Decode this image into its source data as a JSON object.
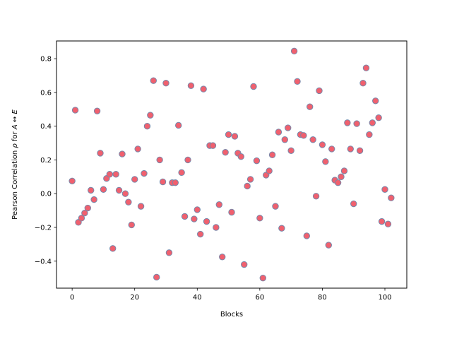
{
  "chart_data": {
    "type": "scatter",
    "title": "",
    "xlabel": "Blocks",
    "ylabel": "Pearson Correlation ρ for A ↔ E",
    "ylabel_parts": {
      "prefix": "Pearson Correlation ",
      "rho": "ρ",
      "middle": " for ",
      "a": "A",
      "arrow": " ↔ ",
      "e": "E"
    },
    "xlim": [
      -5,
      107
    ],
    "ylim": [
      -0.56,
      0.905
    ],
    "xticks": [
      0,
      20,
      40,
      60,
      80,
      100
    ],
    "yticks": [
      -0.4,
      -0.2,
      0.0,
      0.2,
      0.4,
      0.6,
      0.8
    ],
    "xtick_labels": [
      "0",
      "20",
      "40",
      "60",
      "80",
      "100"
    ],
    "ytick_labels": [
      "−0.4",
      "−0.2",
      "0.0",
      "0.2",
      "0.4",
      "0.6",
      "0.8"
    ],
    "grid": false,
    "legend": "none",
    "marker_fill": "#f0606e",
    "marker_edge": "#7788aa",
    "x": [
      0,
      1,
      2,
      3,
      4,
      5,
      6,
      7,
      8,
      9,
      10,
      11,
      12,
      13,
      14,
      15,
      16,
      17,
      18,
      19,
      20,
      21,
      22,
      23,
      24,
      25,
      26,
      27,
      28,
      29,
      30,
      31,
      32,
      33,
      34,
      35,
      36,
      37,
      38,
      39,
      40,
      41,
      42,
      43,
      44,
      45,
      46,
      47,
      48,
      49,
      50,
      51,
      52,
      53,
      54,
      55,
      56,
      57,
      58,
      59,
      60,
      61,
      62,
      63,
      64,
      65,
      66,
      67,
      68,
      69,
      70,
      71,
      72,
      73,
      74,
      75,
      76,
      77,
      78,
      79,
      80,
      81,
      82,
      83,
      84,
      85,
      86,
      87,
      88,
      89,
      90,
      91,
      92,
      93,
      94,
      95,
      96,
      97,
      98,
      99,
      100,
      101,
      102
    ],
    "y": [
      0.075,
      0.495,
      -0.17,
      -0.145,
      -0.115,
      -0.085,
      0.02,
      -0.035,
      0.49,
      0.24,
      0.025,
      0.09,
      0.115,
      -0.325,
      0.115,
      0.02,
      0.235,
      0.0,
      -0.05,
      -0.185,
      0.085,
      0.265,
      -0.075,
      0.12,
      0.4,
      0.465,
      0.67,
      -0.495,
      0.2,
      0.07,
      0.655,
      -0.35,
      0.065,
      0.065,
      0.405,
      0.125,
      -0.135,
      0.2,
      0.64,
      -0.15,
      -0.095,
      -0.24,
      0.62,
      -0.165,
      0.285,
      0.285,
      -0.2,
      -0.065,
      -0.375,
      0.245,
      0.35,
      -0.11,
      0.34,
      0.24,
      0.22,
      -0.42,
      0.045,
      0.085,
      0.635,
      0.195,
      -0.145,
      -0.5,
      0.11,
      0.135,
      0.23,
      -0.075,
      0.365,
      -0.205,
      0.32,
      0.39,
      0.255,
      0.845,
      0.665,
      0.35,
      0.345,
      -0.25,
      0.515,
      0.32,
      -0.015,
      0.61,
      0.29,
      0.19,
      -0.305,
      0.265,
      0.08,
      0.065,
      0.1,
      0.135,
      0.42,
      0.265,
      -0.06,
      0.415,
      0.255,
      0.655,
      0.745,
      0.35,
      0.42,
      0.55,
      0.45,
      -0.165,
      0.025,
      -0.18,
      -0.025
    ]
  }
}
